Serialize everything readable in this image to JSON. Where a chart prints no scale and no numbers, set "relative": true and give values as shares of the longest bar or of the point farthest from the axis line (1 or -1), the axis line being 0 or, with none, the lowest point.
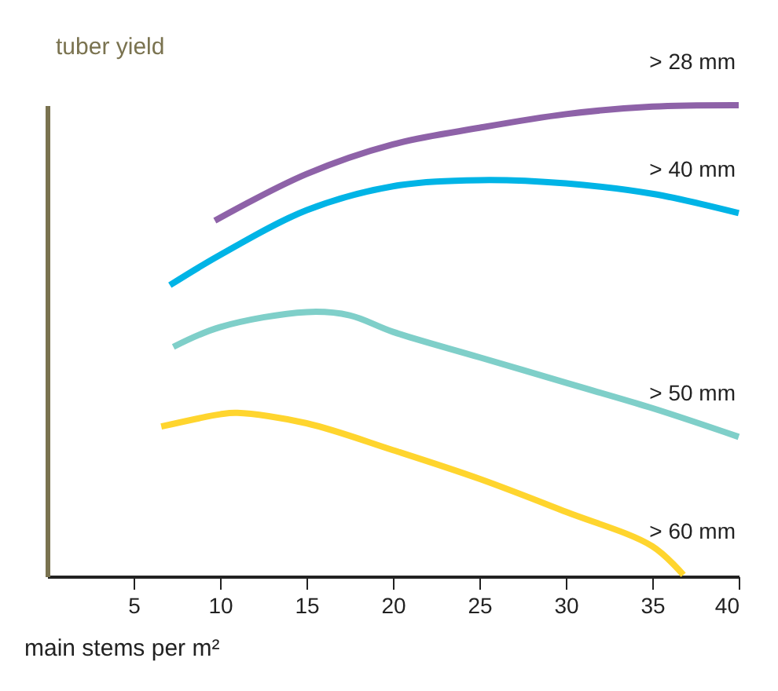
{
  "chart_data": {
    "type": "line",
    "relative": true,
    "xlabel": "main stems per m²",
    "ylabel": "tuber yield",
    "xlim": [
      0,
      40
    ],
    "xticks": [
      5,
      10,
      15,
      20,
      25,
      30,
      35,
      40
    ],
    "grid": false,
    "marker": "none",
    "line_style": "solid",
    "series": [
      {
        "name": "> 28 mm",
        "color": "#8e62a8",
        "x": [
          9.7,
          15,
          20,
          25,
          30,
          35,
          40
        ],
        "values": [
          0.755,
          0.854,
          0.917,
          0.952,
          0.981,
          0.997,
          1.0
        ]
      },
      {
        "name": "> 40 mm",
        "color": "#00b4e6",
        "x": [
          7.1,
          10,
          15,
          20,
          25,
          30,
          35,
          40
        ],
        "values": [
          0.618,
          0.682,
          0.777,
          0.828,
          0.841,
          0.834,
          0.812,
          0.771
        ]
      },
      {
        "name": "> 50 mm",
        "color": "#7fcfc9",
        "x": [
          7.3,
          10,
          15,
          17.5,
          20,
          25,
          30,
          35,
          40
        ],
        "values": [
          0.487,
          0.529,
          0.561,
          0.554,
          0.519,
          0.465,
          0.411,
          0.357,
          0.296
        ]
      },
      {
        "name": "> 60 mm",
        "color": "#ffd52e",
        "x": [
          6.6,
          10,
          11,
          15,
          20,
          25,
          30,
          35,
          36.8
        ],
        "values": [
          0.318,
          0.344,
          0.347,
          0.325,
          0.268,
          0.207,
          0.137,
          0.064,
          0.003
        ]
      }
    ]
  }
}
